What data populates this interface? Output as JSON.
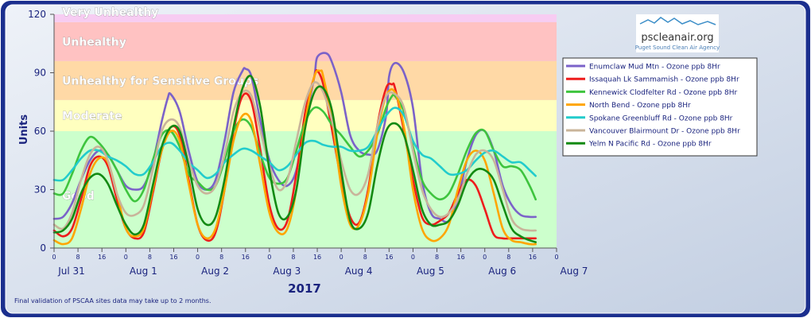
{
  "logo": {
    "name": "pscleanair.org",
    "tagline": "Puget Sound Clean Air Agency"
  },
  "footnote": "Final validation of PSCAA sites data may take up to 2 months.",
  "chart_data": {
    "type": "line",
    "title": "",
    "xlabel": "2017",
    "ylabel": "Units",
    "xlim": [
      0,
      168
    ],
    "ylim": [
      0,
      120
    ],
    "y_ticks": [
      0,
      30,
      60,
      90,
      120
    ],
    "hour_ticks": [
      "0",
      "8",
      "16",
      "0",
      "8",
      "16",
      "0",
      "8",
      "16",
      "0",
      "8",
      "16",
      "0",
      "8",
      "16",
      "0",
      "8",
      "16",
      "0",
      "8",
      "16",
      "0"
    ],
    "day_labels": [
      "Jul 31",
      "Aug 1",
      "Aug 2",
      "Aug 3",
      "Aug 4",
      "Aug 5",
      "Aug 6",
      "Aug 7"
    ],
    "grid": false,
    "legend_position": "right",
    "bands": [
      {
        "label": "Good",
        "from": 0,
        "to": 60,
        "color": "#ccffcc"
      },
      {
        "label": "Moderate",
        "from": 60,
        "to": 76,
        "color": "#ffffbf"
      },
      {
        "label": "Unhealthy for Sensitive Groups",
        "from": 76,
        "to": 96,
        "color": "#ffd9a6"
      },
      {
        "label": "Unhealthy",
        "from": 96,
        "to": 116,
        "color": "#ffc2c2"
      },
      {
        "label": "Very Unhealthy",
        "from": 116,
        "to": 120,
        "color": "#f7ccf2"
      }
    ],
    "series": [
      {
        "name": "Enumclaw Mud Mtn - Ozone  ppb  8Hr",
        "color": "#7b62c9",
        "x": [
          0,
          3,
          6,
          9,
          12,
          15,
          18,
          21,
          24,
          27,
          30,
          33,
          36,
          38,
          39,
          42,
          45,
          48,
          51,
          54,
          57,
          60,
          63,
          64,
          66,
          69,
          72,
          75,
          78,
          81,
          84,
          87,
          88,
          91,
          93,
          96,
          99,
          102,
          105,
          108,
          111,
          112,
          114,
          117,
          120,
          123,
          126,
          129,
          132,
          135,
          138,
          141,
          144,
          147,
          150,
          153,
          156,
          159,
          161
        ],
        "y": [
          15,
          16,
          23,
          35,
          45,
          50,
          48,
          40,
          32,
          30,
          32,
          44,
          65,
          77,
          79,
          70,
          50,
          34,
          30,
          35,
          55,
          80,
          91,
          92,
          88,
          65,
          45,
          35,
          32,
          40,
          65,
          88,
          98,
          100,
          95,
          80,
          58,
          50,
          48,
          50,
          68,
          88,
          95,
          90,
          72,
          35,
          18,
          15,
          14,
          25,
          45,
          58,
          60,
          50,
          32,
          22,
          17,
          16,
          16
        ]
      },
      {
        "name": "Issaquah Lk Sammamish - Ozone  ppb  8Hr",
        "color": "#ee1c1c",
        "x": [
          0,
          3,
          6,
          9,
          12,
          15,
          18,
          21,
          24,
          27,
          30,
          33,
          36,
          39,
          42,
          45,
          48,
          51,
          54,
          57,
          60,
          63,
          66,
          69,
          72,
          75,
          78,
          81,
          84,
          87,
          88,
          90,
          93,
          96,
          99,
          102,
          105,
          108,
          111,
          113,
          114,
          117,
          120,
          123,
          126,
          129,
          132,
          135,
          138,
          141,
          144,
          147,
          150,
          153,
          156,
          159,
          161
        ],
        "y": [
          9,
          6,
          10,
          25,
          42,
          47,
          42,
          25,
          10,
          5,
          8,
          28,
          50,
          62,
          58,
          35,
          12,
          4,
          8,
          30,
          60,
          78,
          75,
          50,
          22,
          10,
          14,
          38,
          70,
          88,
          91,
          84,
          60,
          35,
          16,
          13,
          30,
          62,
          82,
          84,
          82,
          60,
          35,
          16,
          12,
          14,
          18,
          28,
          35,
          32,
          20,
          7,
          5,
          5,
          5,
          5,
          5
        ]
      },
      {
        "name": "Kennewick Clodfelter Rd - Ozone  ppb  8Hr",
        "color": "#3ec43e",
        "x": [
          0,
          3,
          6,
          9,
          12,
          15,
          18,
          21,
          24,
          27,
          30,
          33,
          36,
          39,
          42,
          45,
          48,
          51,
          54,
          57,
          60,
          63,
          66,
          69,
          72,
          75,
          78,
          81,
          84,
          87,
          90,
          93,
          96,
          99,
          102,
          105,
          108,
          111,
          113,
          114,
          117,
          120,
          123,
          126,
          129,
          132,
          135,
          138,
          141,
          144,
          147,
          150,
          153,
          156,
          159,
          161
        ],
        "y": [
          28,
          28,
          38,
          50,
          57,
          54,
          48,
          40,
          30,
          24,
          30,
          45,
          58,
          60,
          52,
          38,
          34,
          30,
          32,
          45,
          60,
          66,
          62,
          48,
          36,
          33,
          36,
          50,
          65,
          72,
          70,
          63,
          58,
          52,
          47,
          50,
          58,
          72,
          78,
          78,
          70,
          52,
          35,
          28,
          25,
          28,
          38,
          50,
          59,
          60,
          50,
          42,
          42,
          40,
          32,
          25
        ]
      },
      {
        "name": "North Bend - Ozone  ppb  8Hr",
        "color": "#ffa500",
        "x": [
          0,
          3,
          6,
          9,
          12,
          15,
          18,
          21,
          24,
          27,
          30,
          33,
          36,
          39,
          42,
          45,
          48,
          51,
          54,
          57,
          60,
          63,
          66,
          69,
          72,
          75,
          78,
          81,
          84,
          87,
          89,
          90,
          93,
          96,
          99,
          102,
          105,
          108,
          111,
          114,
          117,
          120,
          123,
          126,
          129,
          132,
          135,
          138,
          141,
          144,
          147,
          150,
          153,
          156,
          159,
          161
        ],
        "y": [
          4,
          2,
          5,
          20,
          38,
          46,
          44,
          28,
          10,
          6,
          10,
          30,
          50,
          60,
          55,
          33,
          12,
          5,
          10,
          30,
          55,
          68,
          65,
          42,
          18,
          8,
          10,
          30,
          65,
          88,
          91,
          88,
          65,
          32,
          12,
          12,
          28,
          58,
          78,
          80,
          62,
          30,
          10,
          4,
          5,
          12,
          30,
          45,
          50,
          45,
          28,
          10,
          4,
          3,
          2,
          2
        ]
      },
      {
        "name": "Spokane Greenbluff Rd - Ozone  ppb  8Hr",
        "color": "#22cccc",
        "x": [
          0,
          3,
          6,
          9,
          12,
          15,
          18,
          21,
          24,
          27,
          30,
          33,
          36,
          39,
          42,
          45,
          48,
          51,
          54,
          57,
          60,
          63,
          66,
          69,
          72,
          75,
          78,
          81,
          84,
          87,
          90,
          93,
          96,
          99,
          102,
          105,
          108,
          111,
          114,
          117,
          120,
          123,
          126,
          129,
          132,
          135,
          138,
          141,
          144,
          147,
          150,
          153,
          156,
          159,
          161
        ],
        "y": [
          35,
          35,
          40,
          46,
          50,
          50,
          47,
          45,
          42,
          38,
          38,
          44,
          52,
          54,
          50,
          44,
          40,
          36,
          38,
          44,
          48,
          51,
          50,
          47,
          44,
          40,
          42,
          48,
          54,
          55,
          53,
          52,
          52,
          50,
          50,
          52,
          60,
          68,
          72,
          68,
          55,
          48,
          46,
          42,
          38,
          38,
          40,
          45,
          49,
          50,
          47,
          44,
          44,
          40,
          37
        ]
      },
      {
        "name": "Vancouver Blairmount Dr - Ozone  ppb  8Hr",
        "color": "#c9b49a",
        "x": [
          0,
          3,
          6,
          9,
          12,
          15,
          18,
          21,
          24,
          27,
          30,
          33,
          36,
          39,
          42,
          45,
          48,
          51,
          54,
          57,
          60,
          63,
          66,
          69,
          72,
          75,
          78,
          81,
          84,
          87,
          90,
          93,
          96,
          99,
          102,
          105,
          108,
          111,
          114,
          117,
          120,
          123,
          126,
          129,
          132,
          135,
          138,
          141,
          144,
          147,
          150,
          153,
          156,
          159,
          161
        ],
        "y": [
          12,
          10,
          18,
          35,
          48,
          52,
          45,
          28,
          18,
          17,
          22,
          40,
          60,
          66,
          62,
          45,
          32,
          28,
          32,
          48,
          70,
          80,
          78,
          60,
          42,
          30,
          35,
          55,
          75,
          85,
          80,
          65,
          45,
          30,
          28,
          38,
          62,
          78,
          79,
          72,
          50,
          30,
          20,
          16,
          18,
          25,
          38,
          48,
          50,
          45,
          30,
          15,
          10,
          9,
          9
        ]
      },
      {
        "name": "Yelm N Pacific Rd - Ozone  ppb  8Hr",
        "color": "#138a13",
        "x": [
          0,
          3,
          6,
          9,
          12,
          15,
          18,
          21,
          24,
          27,
          30,
          33,
          36,
          39,
          42,
          45,
          48,
          51,
          54,
          57,
          60,
          63,
          66,
          69,
          72,
          75,
          78,
          81,
          84,
          87,
          90,
          93,
          96,
          99,
          102,
          105,
          108,
          111,
          114,
          117,
          120,
          123,
          126,
          129,
          132,
          135,
          138,
          141,
          144,
          147,
          150,
          153,
          156,
          159,
          161
        ],
        "y": [
          8,
          9,
          15,
          28,
          36,
          38,
          33,
          22,
          12,
          7,
          12,
          32,
          52,
          62,
          60,
          42,
          20,
          12,
          16,
          35,
          62,
          82,
          88,
          72,
          40,
          18,
          16,
          30,
          62,
          80,
          82,
          70,
          40,
          14,
          10,
          18,
          42,
          60,
          64,
          58,
          40,
          20,
          12,
          12,
          14,
          22,
          34,
          40,
          40,
          35,
          22,
          10,
          6,
          4,
          3
        ]
      }
    ]
  }
}
